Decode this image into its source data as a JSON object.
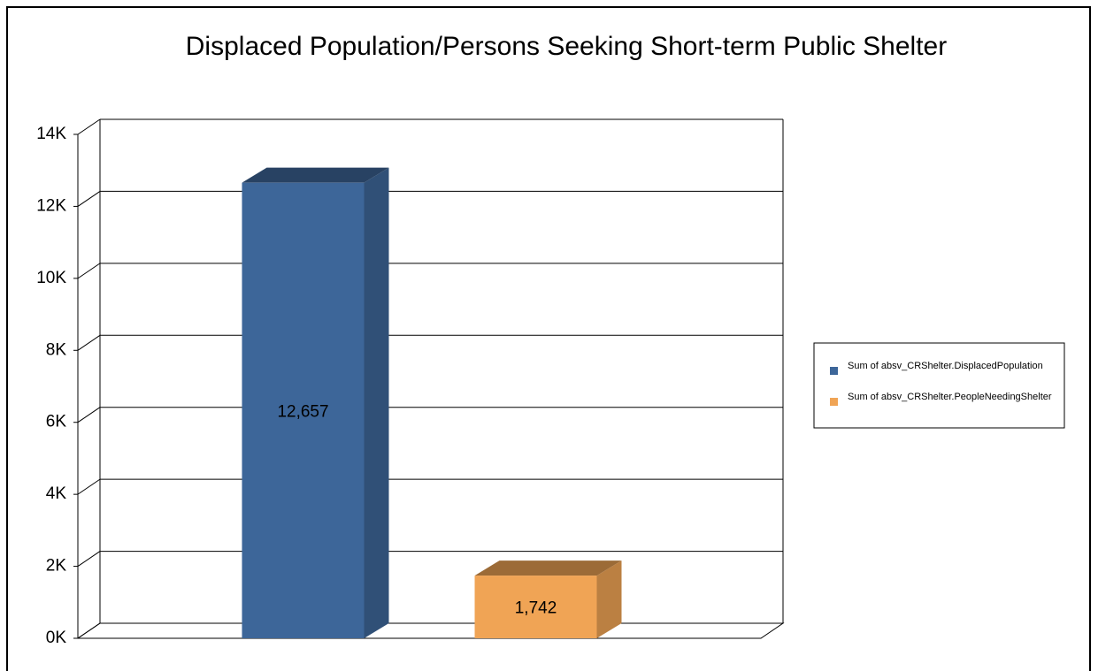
{
  "chart_data": {
    "type": "bar3d",
    "title": "Displaced Population/Persons Seeking Short-term Public Shelter",
    "series": [
      {
        "name": "Sum of absv_CRShelter.DisplacedPopulation",
        "color": "#3d6699",
        "values": [
          12657
        ],
        "value_labels": [
          "12,657"
        ]
      },
      {
        "name": "Sum of absv_CRShelter.PeopleNeedingShelter",
        "color": "#f0a455",
        "values": [
          1742
        ],
        "value_labels": [
          "1,742"
        ]
      }
    ],
    "ylim": [
      0,
      14000
    ],
    "yticks": [
      {
        "value": 0,
        "label": "0K"
      },
      {
        "value": 2000,
        "label": "2K"
      },
      {
        "value": 4000,
        "label": "4K"
      },
      {
        "value": 6000,
        "label": "6K"
      },
      {
        "value": 8000,
        "label": "8K"
      },
      {
        "value": 10000,
        "label": "10K"
      },
      {
        "value": 12000,
        "label": "12K"
      },
      {
        "value": 14000,
        "label": "14K"
      }
    ],
    "grid": true,
    "legend": "right"
  }
}
